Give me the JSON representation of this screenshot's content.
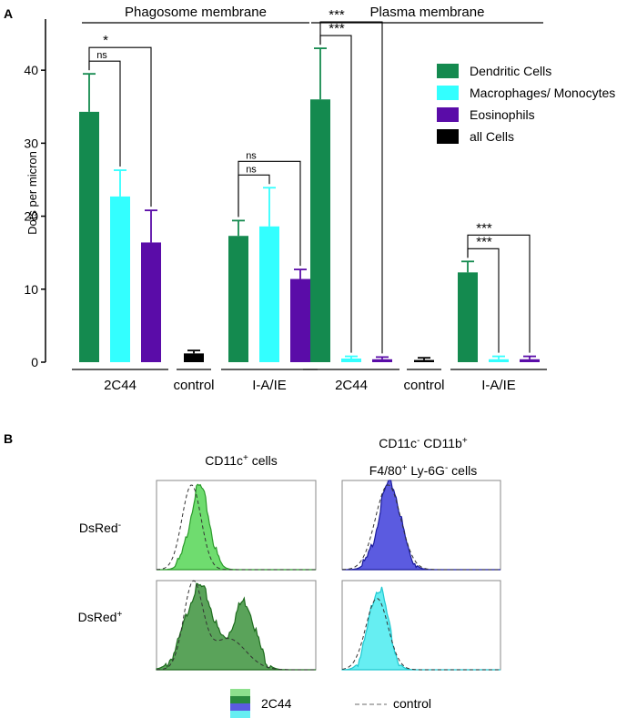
{
  "panel_labels": {
    "a": "A",
    "b": "B"
  },
  "chart_data": [
    {
      "type": "bar",
      "panel": "A",
      "ylabel": "Dots per micron",
      "ylim": [
        0,
        47
      ],
      "yticks": [
        "0",
        "10",
        "20",
        "30",
        "40"
      ],
      "grid": false,
      "legend_position": "top-right",
      "sections": [
        {
          "title": "Phagosome membrane",
          "groups": [
            {
              "label": "2C44",
              "bars": [
                {
                  "series": 0,
                  "value": 34.3,
                  "error": 5.2
                },
                {
                  "series": 1,
                  "value": 22.7,
                  "error": 3.6
                },
                {
                  "series": 2,
                  "value": 16.4,
                  "error": 4.4
                }
              ]
            },
            {
              "label": "control",
              "bars": [
                {
                  "series": 3,
                  "value": 1.2,
                  "error": 0.4
                }
              ]
            },
            {
              "label": "I-A/IE",
              "bars": [
                {
                  "series": 0,
                  "value": 17.3,
                  "error": 2.1
                },
                {
                  "series": 1,
                  "value": 18.6,
                  "error": 5.3
                },
                {
                  "series": 2,
                  "value": 11.4,
                  "error": 1.3
                }
              ]
            }
          ]
        },
        {
          "title": "Plasma membrane",
          "groups": [
            {
              "label": "2C44",
              "bars": [
                {
                  "series": 0,
                  "value": 36.0,
                  "error": 7.0
                },
                {
                  "series": 1,
                  "value": 0.5,
                  "error": 0.3
                },
                {
                  "series": 2,
                  "value": 0.4,
                  "error": 0.3
                }
              ]
            },
            {
              "label": "control",
              "bars": [
                {
                  "series": 3,
                  "value": 0.3,
                  "error": 0.3
                }
              ]
            },
            {
              "label": "I-A/IE",
              "bars": [
                {
                  "series": 0,
                  "value": 12.3,
                  "error": 1.5
                },
                {
                  "series": 1,
                  "value": 0.4,
                  "error": 0.4
                },
                {
                  "series": 2,
                  "value": 0.4,
                  "error": 0.4
                }
              ]
            }
          ]
        }
      ],
      "series": [
        {
          "name": "Dendritic Cells",
          "color": "#148a4f"
        },
        {
          "name": "Macrophages/ Monocytes",
          "color": "#33ffff"
        },
        {
          "name": "Eosinophils",
          "color": "#5a0ca8"
        },
        {
          "name": "all Cells",
          "color": "#000000"
        }
      ],
      "significance": [
        {
          "section": 0,
          "group": 0,
          "from": 0,
          "to": 1,
          "label": "ns"
        },
        {
          "section": 0,
          "group": 0,
          "from": 0,
          "to": 2,
          "label": "*"
        },
        {
          "section": 0,
          "group": 2,
          "from": 0,
          "to": 1,
          "label": "ns"
        },
        {
          "section": 0,
          "group": 2,
          "from": 0,
          "to": 2,
          "label": "ns"
        },
        {
          "section": 1,
          "group": 0,
          "from": 0,
          "to": 1,
          "label": "***"
        },
        {
          "section": 1,
          "group": 0,
          "from": 0,
          "to": 2,
          "label": "***"
        },
        {
          "section": 1,
          "group": 2,
          "from": 0,
          "to": 1,
          "label": "***"
        },
        {
          "section": 1,
          "group": 2,
          "from": 0,
          "to": 2,
          "label": "***"
        }
      ]
    },
    {
      "type": "histogram",
      "panel": "B",
      "columns": [
        {
          "parts": [
            {
              "t": "CD11c"
            },
            {
              "t": "+",
              "sup": true
            },
            {
              "t": " cells"
            }
          ]
        },
        {
          "lines": [
            [
              {
                "t": "CD11c"
              },
              {
                "t": "-",
                "sup": true
              },
              {
                "t": " CD11b"
              },
              {
                "t": "+",
                "sup": true
              }
            ],
            [
              {
                "t": "F4/80"
              },
              {
                "t": "+",
                "sup": true
              },
              {
                "t": " Ly-6G"
              },
              {
                "t": "-",
                "sup": true
              },
              {
                "t": " cells"
              }
            ]
          ]
        }
      ],
      "rows": [
        {
          "parts": [
            {
              "t": "DsRed"
            },
            {
              "t": "-",
              "sup": true
            }
          ]
        },
        {
          "parts": [
            {
              "t": "DsRed"
            },
            {
              "t": "+",
              "sup": true
            }
          ]
        }
      ],
      "panels": [
        {
          "row": 0,
          "col": 0,
          "fill": "#6fdc6f",
          "stroke": "#2a9a2a",
          "peaks": [
            [
              0.27,
              0.06,
              0.93
            ]
          ],
          "control": [
            [
              0.22,
              0.06,
              0.95
            ]
          ]
        },
        {
          "row": 0,
          "col": 1,
          "fill": "#5b5be0",
          "stroke": "#1a1a9c",
          "peaks": [
            [
              0.3,
              0.07,
              0.97
            ]
          ],
          "control": [
            [
              0.29,
              0.08,
              0.95
            ]
          ]
        },
        {
          "row": 1,
          "col": 0,
          "fill": "#5aa35a",
          "stroke": "#1d6b1d",
          "peaks": [
            [
              0.27,
              0.09,
              0.93
            ],
            [
              0.55,
              0.07,
              0.76
            ]
          ],
          "control": [
            [
              0.23,
              0.06,
              0.95
            ],
            [
              0.45,
              0.11,
              0.35
            ]
          ]
        },
        {
          "row": 1,
          "col": 1,
          "fill": "#66eef2",
          "stroke": "#1ec8d0",
          "peaks": [
            [
              0.23,
              0.06,
              0.92
            ]
          ],
          "control": [
            [
              0.22,
              0.07,
              0.8
            ]
          ]
        }
      ],
      "legend": {
        "label": "2C44",
        "control_label": "control",
        "swatches": [
          "#8de08d",
          "#2a8a3e",
          "#5b5be0",
          "#66eef2"
        ]
      }
    }
  ]
}
